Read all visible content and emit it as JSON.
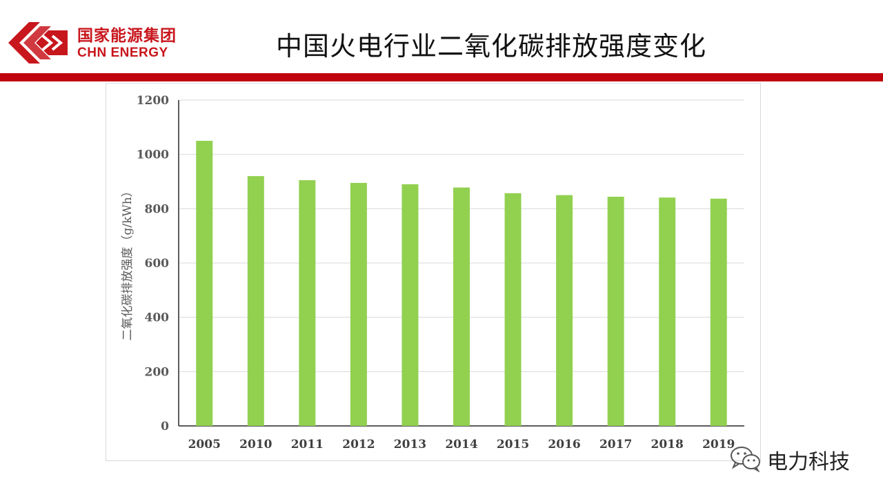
{
  "header": {
    "logo_cn": "国家能源集团",
    "logo_en": "CHN ENERGY",
    "title": "中国火电行业二氧化碳排放强度变化"
  },
  "watermark": {
    "text": "电力科技"
  },
  "colors": {
    "brand_red": "#c0040f",
    "bar_green": "#92d050",
    "grid": "#d9d9d9"
  },
  "chart_data": {
    "type": "bar",
    "title": "",
    "categories": [
      "2005",
      "2010",
      "2011",
      "2012",
      "2013",
      "2014",
      "2015",
      "2016",
      "2017",
      "2018",
      "2019"
    ],
    "values": [
      1050,
      920,
      905,
      895,
      890,
      878,
      857,
      850,
      844,
      841,
      837
    ],
    "xlabel": "",
    "ylabel": "二氧化碳排放强度（g/kWh）",
    "ylim": [
      0,
      1200
    ],
    "yticks": [
      0,
      200,
      400,
      600,
      800,
      1000,
      1200
    ],
    "grid": true,
    "legend": "none"
  }
}
